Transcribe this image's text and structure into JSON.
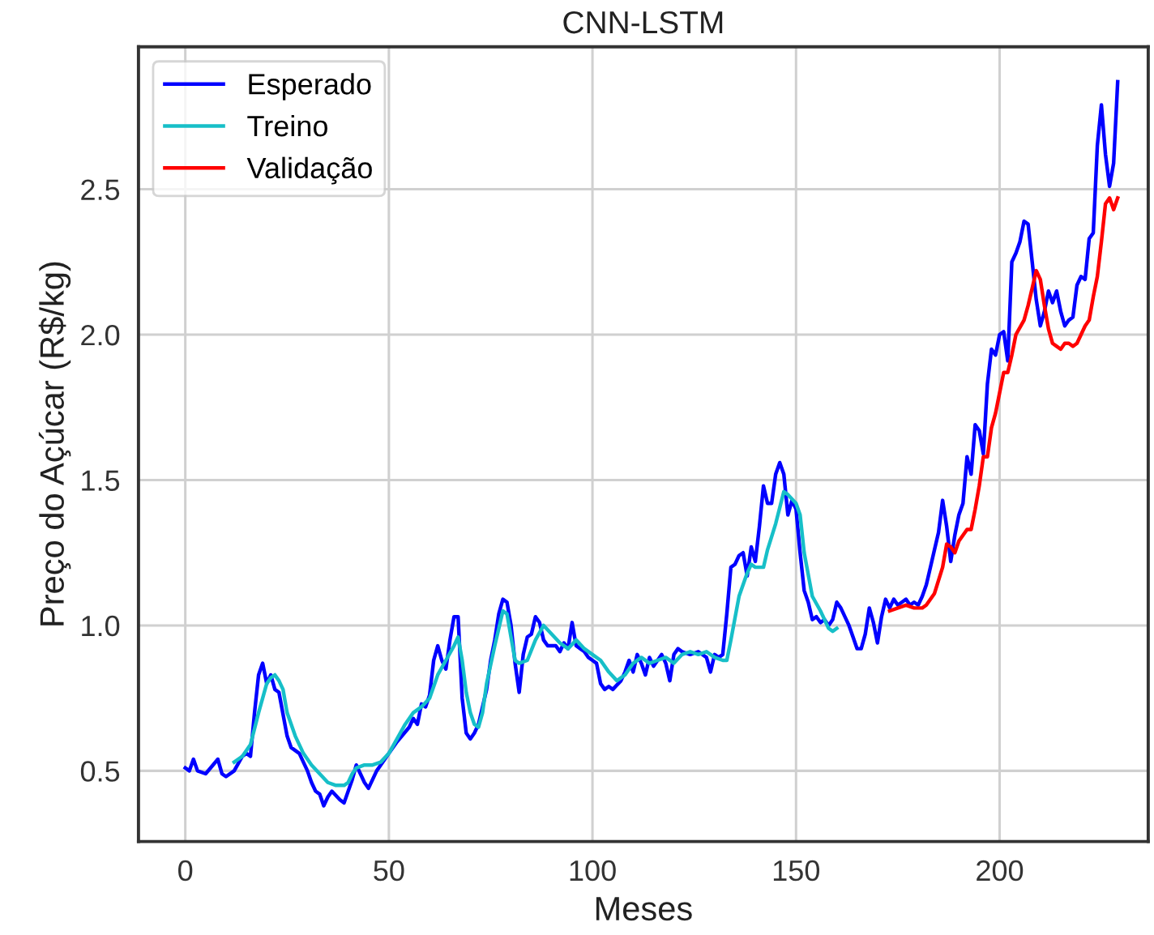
{
  "chart_data": {
    "type": "line",
    "title": "CNN-LSTM",
    "xlabel": "Meses",
    "ylabel": "Preço do Açúcar (R$/kg)",
    "xlim": [
      -11.5,
      236.5
    ],
    "ylim": [
      0.257,
      2.99
    ],
    "xticks": [
      0,
      50,
      100,
      150,
      200
    ],
    "yticks": [
      {
        "value": 0.5,
        "label": "0.5"
      },
      {
        "value": 1.0,
        "label": "1.0"
      },
      {
        "value": 1.5,
        "label": "1.5"
      },
      {
        "value": 2.0,
        "label": "2.0"
      },
      {
        "value": 2.5,
        "label": "2.5"
      }
    ],
    "grid": true,
    "legend": "top left",
    "marker": "none",
    "line_style": "solid",
    "series": [
      {
        "name": "Esperado",
        "color": "#0000ff",
        "x": [
          0,
          1,
          2,
          3,
          5,
          8,
          9,
          10,
          12,
          14,
          15,
          16,
          17,
          18,
          19,
          20,
          21,
          22,
          23,
          25,
          26,
          28,
          30,
          31,
          32,
          33,
          34,
          35,
          36,
          38,
          39,
          41,
          42,
          43,
          44,
          45,
          47,
          48,
          50,
          52,
          55,
          56,
          57,
          58,
          59,
          60,
          61,
          62,
          63,
          64,
          65,
          66,
          67,
          68,
          69,
          70,
          71,
          72,
          74,
          75,
          76,
          77,
          78,
          79,
          80,
          81,
          82,
          83,
          84,
          85,
          86,
          87,
          88,
          89,
          91,
          92,
          93,
          94,
          95,
          96,
          97,
          98,
          99,
          100,
          101,
          102,
          103,
          104,
          105,
          107,
          108,
          109,
          110,
          111,
          112,
          113,
          114,
          115,
          116,
          117,
          118,
          119,
          120,
          121,
          122,
          124,
          126,
          128,
          129,
          130,
          131,
          132,
          133,
          134,
          135,
          136,
          137,
          138,
          139,
          140,
          141,
          142,
          143,
          144,
          145,
          146,
          147,
          148,
          149,
          150,
          151,
          152,
          153,
          154,
          155,
          156,
          157,
          158,
          159,
          160,
          161,
          162,
          163,
          164,
          165,
          166,
          167,
          168,
          169,
          170,
          171,
          172,
          173,
          174,
          175,
          176,
          177,
          178,
          179,
          180,
          181,
          182,
          183,
          184,
          185,
          186,
          187,
          188,
          189,
          190,
          191,
          192,
          193,
          194,
          195,
          196,
          197,
          198,
          199,
          200,
          201,
          202,
          203,
          204,
          205,
          206,
          207,
          208,
          209,
          210,
          211,
          212,
          213,
          214,
          215,
          216,
          217,
          218,
          219,
          220,
          221,
          222,
          223,
          224,
          225,
          226,
          227,
          228,
          229
        ],
        "values": [
          0.51,
          0.5,
          0.54,
          0.5,
          0.49,
          0.54,
          0.49,
          0.48,
          0.5,
          0.55,
          0.56,
          0.55,
          0.7,
          0.83,
          0.87,
          0.8,
          0.83,
          0.78,
          0.77,
          0.62,
          0.58,
          0.56,
          0.5,
          0.46,
          0.43,
          0.42,
          0.38,
          0.41,
          0.43,
          0.4,
          0.39,
          0.47,
          0.52,
          0.49,
          0.46,
          0.44,
          0.5,
          0.52,
          0.56,
          0.6,
          0.65,
          0.68,
          0.66,
          0.73,
          0.72,
          0.76,
          0.88,
          0.93,
          0.88,
          0.85,
          0.95,
          1.03,
          1.03,
          0.75,
          0.63,
          0.61,
          0.63,
          0.66,
          0.78,
          0.88,
          0.95,
          1.04,
          1.09,
          1.08,
          1.0,
          0.87,
          0.77,
          0.9,
          0.96,
          0.97,
          1.03,
          1.01,
          0.95,
          0.93,
          0.93,
          0.91,
          0.94,
          0.92,
          1.01,
          0.93,
          0.92,
          0.91,
          0.89,
          0.88,
          0.87,
          0.8,
          0.78,
          0.79,
          0.78,
          0.81,
          0.84,
          0.88,
          0.84,
          0.9,
          0.87,
          0.83,
          0.89,
          0.86,
          0.88,
          0.9,
          0.87,
          0.81,
          0.9,
          0.92,
          0.91,
          0.9,
          0.91,
          0.89,
          0.84,
          0.9,
          0.89,
          0.9,
          1.04,
          1.2,
          1.21,
          1.24,
          1.25,
          1.17,
          1.27,
          1.22,
          1.34,
          1.48,
          1.42,
          1.42,
          1.52,
          1.56,
          1.52,
          1.38,
          1.43,
          1.4,
          1.25,
          1.12,
          1.08,
          1.02,
          1.03,
          1.01,
          1.02,
          1.0,
          1.02,
          1.08,
          1.06,
          1.03,
          1.0,
          0.96,
          0.92,
          0.92,
          0.97,
          1.06,
          1.01,
          0.94,
          1.03,
          1.09,
          1.06,
          1.09,
          1.07,
          1.08,
          1.09,
          1.07,
          1.08,
          1.07,
          1.1,
          1.14,
          1.2,
          1.26,
          1.32,
          1.43,
          1.34,
          1.22,
          1.31,
          1.38,
          1.42,
          1.58,
          1.52,
          1.69,
          1.67,
          1.59,
          1.83,
          1.95,
          1.93,
          2.0,
          2.01,
          1.91,
          2.25,
          2.28,
          2.32,
          2.39,
          2.38,
          2.25,
          2.12,
          2.03,
          2.08,
          2.15,
          2.11,
          2.15,
          2.08,
          2.03,
          2.05,
          2.06,
          2.17,
          2.2,
          2.19,
          2.33,
          2.35,
          2.65,
          2.79,
          2.62,
          2.51,
          2.59,
          2.87
        ]
      },
      {
        "name": "Treino",
        "color": "#17bfc8",
        "x": [
          12,
          14,
          16,
          18,
          20,
          21,
          22,
          23,
          24,
          25,
          27,
          29,
          31,
          33,
          35,
          37,
          39,
          40,
          41,
          42,
          44,
          46,
          48,
          50,
          52,
          54,
          56,
          58,
          60,
          62,
          64,
          66,
          67,
          68,
          69,
          70,
          71,
          72,
          73,
          74,
          76,
          78,
          79,
          80,
          81,
          82,
          84,
          86,
          88,
          90,
          92,
          94,
          96,
          98,
          100,
          102,
          104,
          106,
          108,
          110,
          112,
          114,
          116,
          118,
          120,
          122,
          124,
          126,
          128,
          130,
          132,
          133,
          134,
          136,
          138,
          139,
          140,
          142,
          143,
          145,
          147,
          148,
          150,
          151,
          152,
          154,
          156,
          158,
          159,
          160
        ],
        "values": [
          0.53,
          0.55,
          0.59,
          0.7,
          0.8,
          0.82,
          0.83,
          0.81,
          0.78,
          0.7,
          0.62,
          0.56,
          0.52,
          0.49,
          0.46,
          0.45,
          0.45,
          0.46,
          0.49,
          0.51,
          0.52,
          0.52,
          0.53,
          0.56,
          0.61,
          0.66,
          0.7,
          0.72,
          0.75,
          0.83,
          0.88,
          0.93,
          0.96,
          0.88,
          0.77,
          0.7,
          0.66,
          0.65,
          0.7,
          0.8,
          0.93,
          1.05,
          1.04,
          0.96,
          0.88,
          0.87,
          0.88,
          0.95,
          1.0,
          0.97,
          0.94,
          0.92,
          0.95,
          0.92,
          0.9,
          0.88,
          0.84,
          0.81,
          0.83,
          0.87,
          0.89,
          0.87,
          0.88,
          0.89,
          0.87,
          0.9,
          0.91,
          0.9,
          0.91,
          0.89,
          0.88,
          0.88,
          0.95,
          1.1,
          1.18,
          1.21,
          1.2,
          1.2,
          1.26,
          1.35,
          1.46,
          1.45,
          1.42,
          1.38,
          1.25,
          1.1,
          1.05,
          0.99,
          0.98,
          0.99
        ]
      },
      {
        "name": "Validação",
        "color": "#ff0000",
        "x": [
          173,
          175,
          177,
          179,
          181,
          182,
          184,
          186,
          187,
          188,
          189,
          190,
          192,
          193,
          194,
          195,
          196,
          197,
          198,
          199,
          200,
          201,
          202,
          203,
          204,
          206,
          207,
          209,
          210,
          211,
          212,
          213,
          214,
          215,
          216,
          217,
          218,
          219,
          220,
          221,
          222,
          223,
          224,
          225,
          226,
          227,
          228,
          229
        ],
        "values": [
          1.05,
          1.06,
          1.07,
          1.06,
          1.06,
          1.07,
          1.11,
          1.2,
          1.28,
          1.27,
          1.25,
          1.29,
          1.33,
          1.33,
          1.4,
          1.48,
          1.58,
          1.58,
          1.68,
          1.73,
          1.8,
          1.87,
          1.87,
          1.93,
          2.0,
          2.05,
          2.1,
          2.22,
          2.19,
          2.1,
          2.02,
          1.97,
          1.96,
          1.95,
          1.97,
          1.97,
          1.96,
          1.97,
          2.0,
          2.03,
          2.05,
          2.13,
          2.2,
          2.32,
          2.45,
          2.47,
          2.43,
          2.47
        ]
      }
    ]
  }
}
